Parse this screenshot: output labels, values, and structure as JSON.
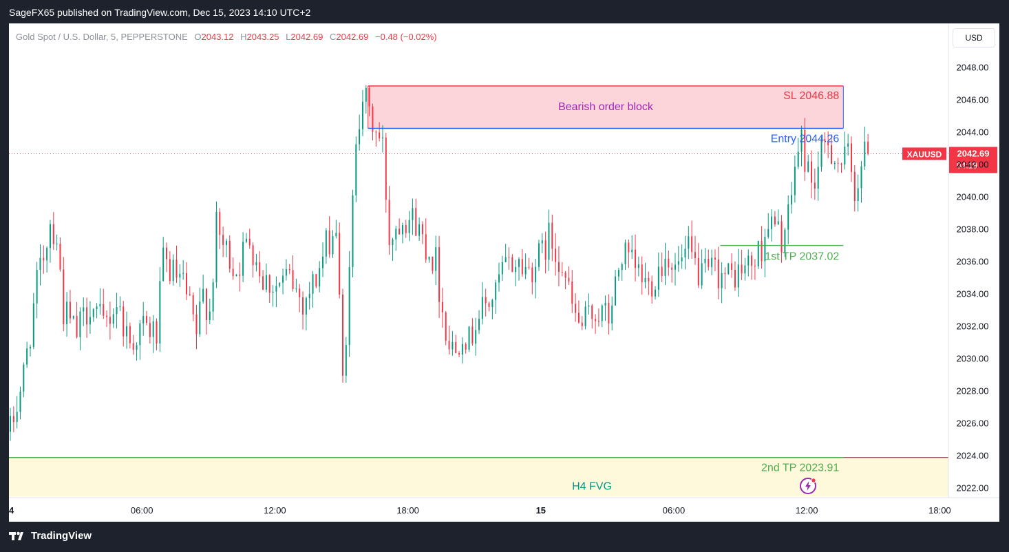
{
  "header": {
    "publish_text": "SageFX65 published on TradingView.com, Dec 15, 2023 14:10 UTC+2"
  },
  "footer": {
    "brand": "TradingView"
  },
  "legend": {
    "symbol": "Gold Spot / U.S. Dollar, 5, PEPPERSTONE",
    "open_label": "O",
    "open": "2043.12",
    "high_label": "H",
    "high": "2043.25",
    "low_label": "L",
    "low": "2042.69",
    "close_label": "C",
    "close": "2042.69",
    "change": "−0.48 (−0.02%)"
  },
  "toolbar": {
    "currency": "USD"
  },
  "price_tag": {
    "symbol": "XAUUSD",
    "price": "2042.69",
    "countdown": "04:19"
  },
  "colors": {
    "up": "#089981",
    "down": "#f23645",
    "tp": "#4caf50",
    "entry": "#2962ff",
    "order_block_fill": "#fcd5da",
    "fvg_fill": "#fff9db",
    "text_purple": "#9c27b0"
  },
  "chart_data": {
    "type": "candlestick",
    "symbol": "XAUUSD",
    "timeframe": "5",
    "ylim": [
      2021.0,
      2050.5
    ],
    "y_ticks": [
      2022,
      2024,
      2026,
      2028,
      2030,
      2032,
      2034,
      2036,
      2038,
      2040,
      2042,
      2044,
      2046,
      2048
    ],
    "y_tick_labels": [
      "2022.00",
      "2024.00",
      "2026.00",
      "2028.00",
      "2030.00",
      "2032.00",
      "2034.00",
      "2036.00",
      "2038.00",
      "2040.00",
      "2042.00",
      "2044.00",
      "2046.00",
      "2048.00"
    ],
    "x_ticks": [
      {
        "label": "4",
        "bold": true,
        "at": 0
      },
      {
        "label": "06:00",
        "bold": false,
        "at": 40
      },
      {
        "label": "12:00",
        "bold": false,
        "at": 80
      },
      {
        "label": "18:00",
        "bold": false,
        "at": 120
      },
      {
        "label": "15",
        "bold": true,
        "at": 160
      },
      {
        "label": "06:00",
        "bold": false,
        "at": 200
      },
      {
        "label": "12:00",
        "bold": false,
        "at": 240
      },
      {
        "label": "18:00",
        "bold": false,
        "at": 280
      }
    ],
    "x_range": [
      0,
      284
    ],
    "price_path": [
      [
        0,
        2025.5
      ],
      [
        4,
        2029
      ],
      [
        8,
        2034.5
      ],
      [
        12,
        2038.5
      ],
      [
        14,
        2037.5
      ],
      [
        16,
        2033
      ],
      [
        20,
        2031.5
      ],
      [
        24,
        2033.5
      ],
      [
        28,
        2032
      ],
      [
        32,
        2033.5
      ],
      [
        36,
        2031
      ],
      [
        40,
        2032
      ],
      [
        44,
        2031.5
      ],
      [
        46,
        2036
      ],
      [
        48,
        2035.5
      ],
      [
        52,
        2034.5
      ],
      [
        56,
        2031.5
      ],
      [
        58,
        2034
      ],
      [
        60,
        2033
      ],
      [
        62,
        2038
      ],
      [
        64,
        2037
      ],
      [
        68,
        2035.5
      ],
      [
        72,
        2037.5
      ],
      [
        76,
        2035
      ],
      [
        80,
        2034.5
      ],
      [
        84,
        2035
      ],
      [
        88,
        2033.5
      ],
      [
        92,
        2035
      ],
      [
        96,
        2037.5
      ],
      [
        98,
        2038
      ],
      [
        100,
        2028.5
      ],
      [
        102,
        2035
      ],
      [
        104,
        2044
      ],
      [
        106,
        2046.5
      ],
      [
        108,
        2045
      ],
      [
        110,
        2044
      ],
      [
        112,
        2043
      ],
      [
        114,
        2037.5
      ],
      [
        118,
        2039
      ],
      [
        122,
        2038.5
      ],
      [
        124,
        2037.5
      ],
      [
        128,
        2036
      ],
      [
        130,
        2033
      ],
      [
        132,
        2031
      ],
      [
        134,
        2030.5
      ],
      [
        136,
        2032
      ],
      [
        138,
        2031
      ],
      [
        140,
        2032.5
      ],
      [
        142,
        2033
      ],
      [
        146,
        2034
      ],
      [
        148,
        2035.5
      ],
      [
        152,
        2036
      ],
      [
        156,
        2035.5
      ],
      [
        160,
        2036.5
      ],
      [
        162,
        2037.5
      ],
      [
        166,
        2036
      ],
      [
        168,
        2034
      ],
      [
        170,
        2032.5
      ],
      [
        172,
        2032
      ],
      [
        176,
        2033
      ],
      [
        180,
        2032.5
      ],
      [
        182,
        2034.5
      ],
      [
        184,
        2036.5
      ],
      [
        188,
        2035.5
      ],
      [
        192,
        2034.5
      ],
      [
        196,
        2036
      ],
      [
        198,
        2036.5
      ],
      [
        200,
        2035.5
      ],
      [
        204,
        2036.5
      ],
      [
        208,
        2035
      ],
      [
        212,
        2035.5
      ],
      [
        216,
        2035
      ],
      [
        220,
        2035.5
      ],
      [
        224,
        2036
      ],
      [
        226,
        2037
      ],
      [
        228,
        2038.5
      ],
      [
        230,
        2038
      ],
      [
        232,
        2037.5
      ],
      [
        234,
        2038.5
      ],
      [
        236,
        2042
      ],
      [
        238,
        2043.5
      ],
      [
        240,
        2041.5
      ],
      [
        242,
        2041
      ],
      [
        244,
        2042.5
      ],
      [
        246,
        2043.5
      ],
      [
        248,
        2042.5
      ],
      [
        250,
        2042
      ],
      [
        252,
        2042.5
      ],
      [
        254,
        2040.5
      ],
      [
        256,
        2042
      ],
      [
        258,
        2043
      ]
    ],
    "annotations": [
      {
        "kind": "zone",
        "x": [
          108,
          251
        ],
        "y": [
          2044.26,
          2046.88
        ],
        "text": "Bearish order block"
      },
      {
        "kind": "zone",
        "x": [
          0,
          284
        ],
        "y": [
          2021.5,
          2023.91
        ],
        "text": "H4 FVG"
      },
      {
        "kind": "level",
        "x": [
          108,
          251
        ],
        "y": 2046.88,
        "text": "SL 2046.88"
      },
      {
        "kind": "level",
        "x": [
          108,
          251
        ],
        "y": 2044.26,
        "text": "Entry  2044.26"
      },
      {
        "kind": "level",
        "x": [
          214,
          251
        ],
        "y": 2037.02,
        "text": "1st TP 2037.02"
      },
      {
        "kind": "level",
        "x": [
          0,
          251
        ],
        "y": 2023.91,
        "text": "2nd TP 2023.91"
      }
    ],
    "last_price": 2042.69
  }
}
